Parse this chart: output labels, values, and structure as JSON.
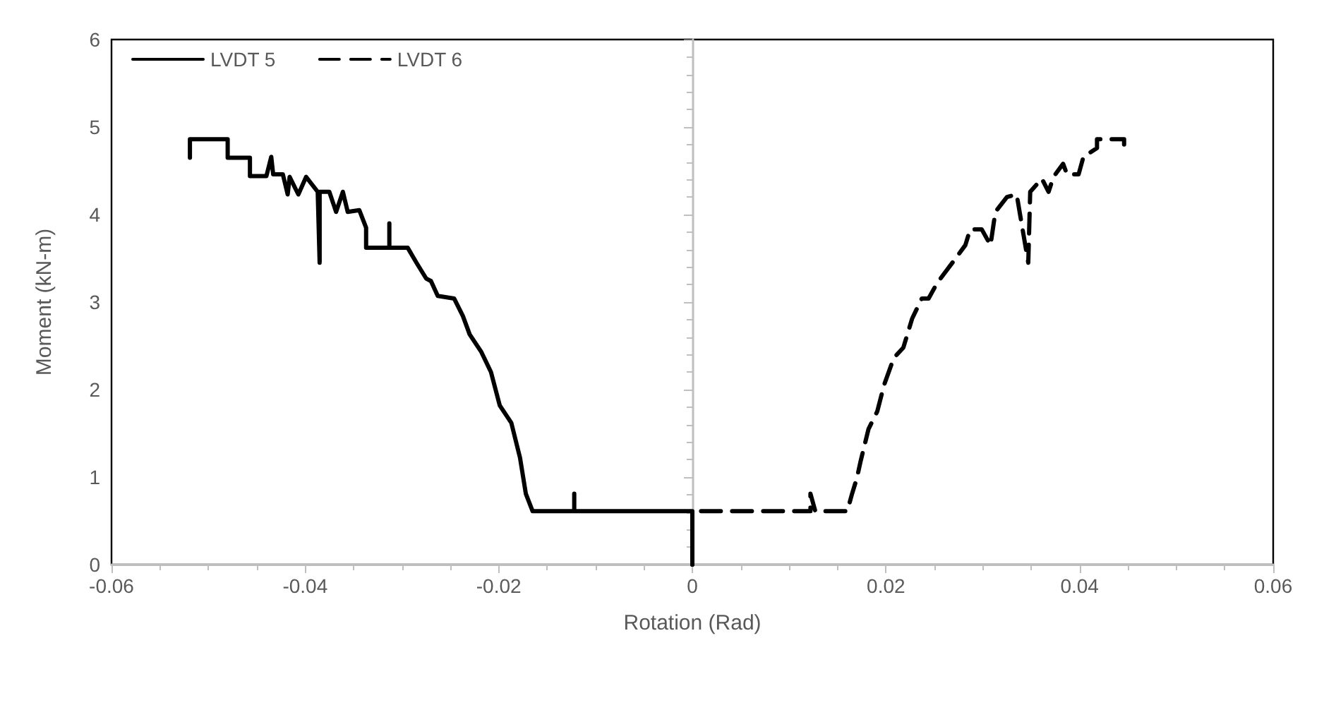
{
  "chart_data": {
    "type": "line",
    "xlabel": "Rotation (Rad)",
    "ylabel": "Moment (kN-m)",
    "xlim": [
      -0.06,
      0.06
    ],
    "xticks": [
      -0.06,
      -0.04,
      -0.02,
      0,
      0.02,
      0.04,
      0.06
    ],
    "ylim": [
      0,
      6
    ],
    "yticks": [
      0,
      1,
      2,
      3,
      4,
      5,
      6
    ],
    "legend": "top left",
    "marker": "none",
    "series": [
      {
        "name": "LVDT 5",
        "color": "#000000",
        "line_style": "solid",
        "x": [
          0,
          0,
          -0.0122,
          -0.0122,
          -0.0122,
          -0.0165,
          -0.0172,
          -0.0178,
          -0.0187,
          -0.0199,
          -0.0208,
          -0.0218,
          -0.023,
          -0.0237,
          -0.0246,
          -0.0263,
          -0.027,
          -0.0275,
          -0.0285,
          -0.0294,
          -0.0313,
          -0.0313,
          -0.0313,
          -0.0323,
          -0.0337,
          -0.0337,
          -0.0344,
          -0.0356,
          -0.0361,
          -0.0368,
          -0.0375,
          -0.0385,
          -0.0385,
          -0.0387,
          -0.0399,
          -0.0407,
          -0.0416,
          -0.0418,
          -0.0423,
          -0.0433,
          -0.0435,
          -0.044,
          -0.0457,
          -0.0457,
          -0.048,
          -0.048,
          -0.0519,
          -0.0519
        ],
        "values": [
          0,
          0.61,
          0.61,
          0.81,
          0.61,
          0.61,
          0.81,
          1.22,
          1.62,
          1.82,
          2.2,
          2.43,
          2.63,
          2.84,
          3.04,
          3.07,
          3.24,
          3.27,
          3.45,
          3.62,
          3.62,
          3.9,
          3.62,
          3.62,
          3.62,
          3.85,
          4.05,
          4.03,
          4.26,
          4.03,
          4.26,
          4.26,
          3.45,
          4.26,
          4.43,
          4.23,
          4.43,
          4.23,
          4.46,
          4.46,
          4.66,
          4.44,
          4.44,
          4.65,
          4.65,
          4.86,
          4.86,
          4.65
        ]
      },
      {
        "name": "LVDT 6",
        "color": "#000000",
        "line_style": "dashed",
        "x": [
          0,
          0,
          0.0122,
          0.0122,
          0.0127,
          0.0141,
          0.016,
          0.0165,
          0.017,
          0.0174,
          0.0182,
          0.0191,
          0.0198,
          0.0208,
          0.0218,
          0.0227,
          0.0237,
          0.0244,
          0.0253,
          0.027,
          0.0282,
          0.0287,
          0.0299,
          0.0308,
          0.0313,
          0.0325,
          0.0335,
          0.0347,
          0.0349,
          0.0361,
          0.0368,
          0.0373,
          0.0383,
          0.0387,
          0.0399,
          0.0404,
          0.0418,
          0.0418,
          0.0446,
          0.0446
        ],
        "values": [
          0,
          0.61,
          0.61,
          0.81,
          0.61,
          0.61,
          0.61,
          0.81,
          0.99,
          1.19,
          1.55,
          1.75,
          2.05,
          2.36,
          2.48,
          2.81,
          3.04,
          3.04,
          3.22,
          3.47,
          3.65,
          3.83,
          3.83,
          3.65,
          4.03,
          4.2,
          4.23,
          3.45,
          4.26,
          4.41,
          4.26,
          4.43,
          4.58,
          4.46,
          4.46,
          4.66,
          4.76,
          4.86,
          4.86,
          4.8
        ]
      }
    ]
  }
}
